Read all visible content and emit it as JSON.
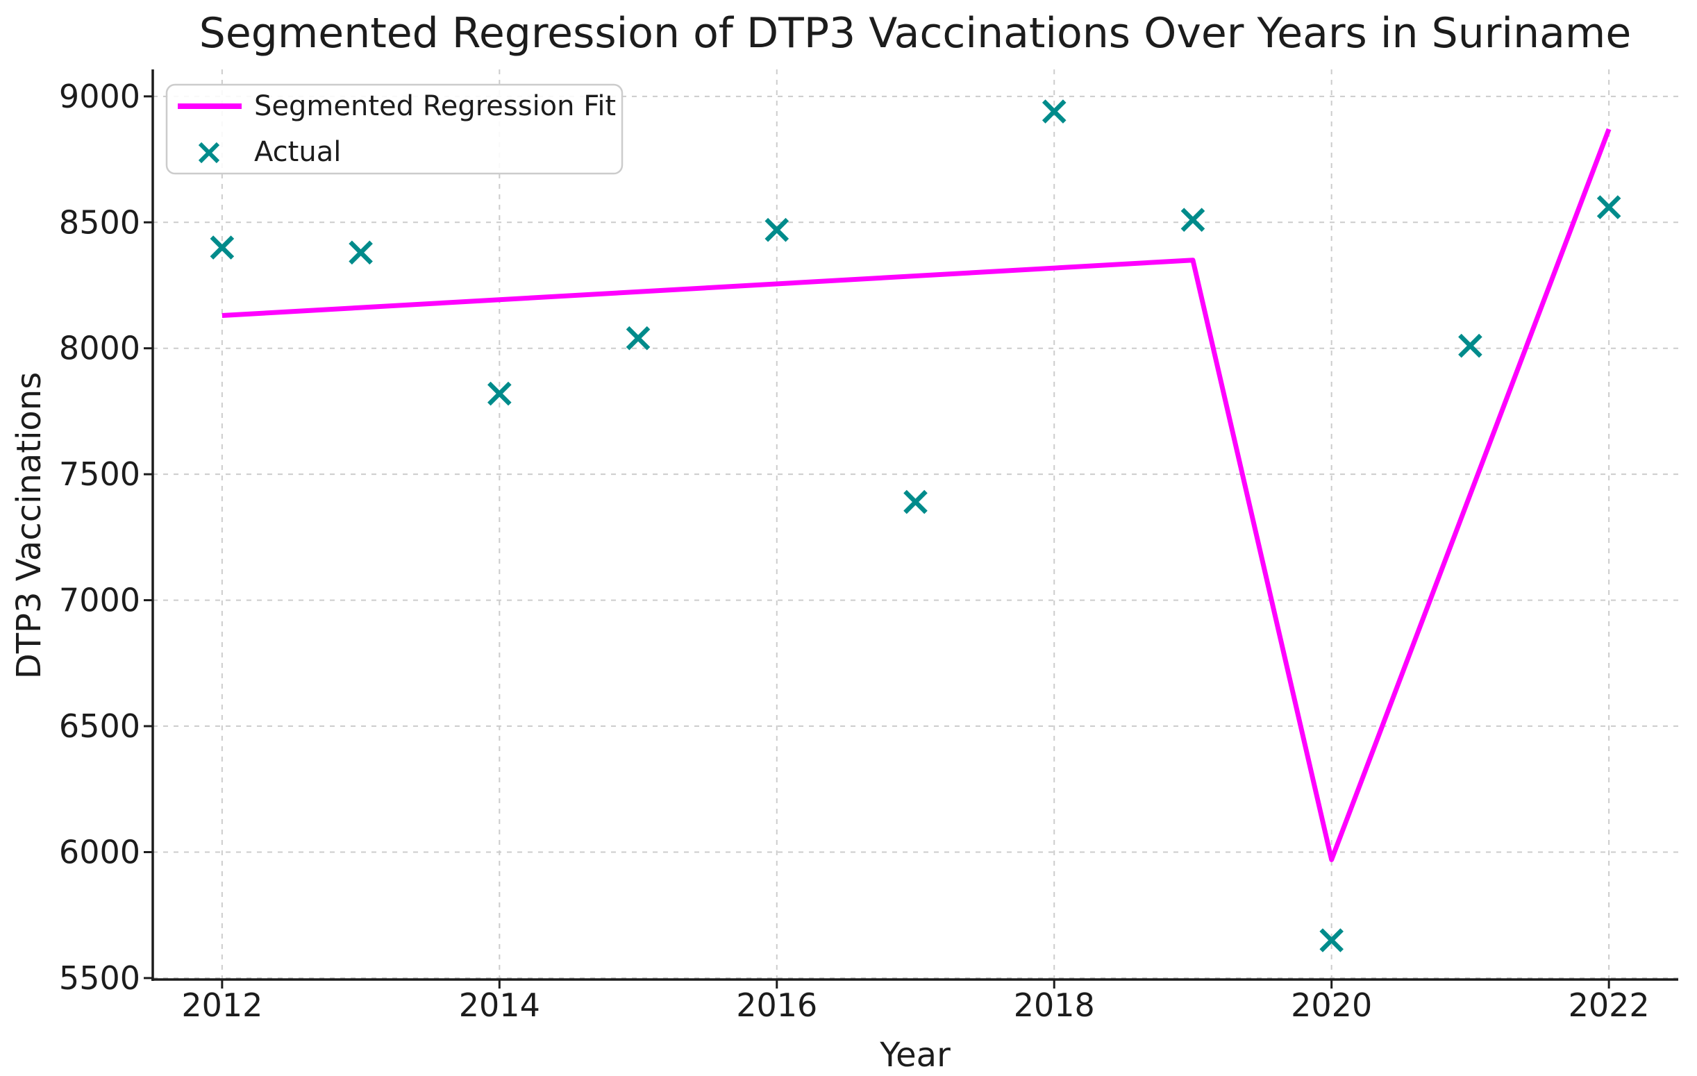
{
  "title": "Segmented Regression of DTP3 Vaccinations Over Years in Suriname",
  "axes": {
    "xlabel": "Year",
    "ylabel": "DTP3 Vaccinations",
    "x_ticks": [
      2012,
      2014,
      2016,
      2018,
      2020,
      2022
    ],
    "y_ticks": [
      5500,
      6000,
      6500,
      7000,
      7500,
      8000,
      8500,
      9000
    ]
  },
  "legend": {
    "position": "upper-left",
    "items": [
      {
        "label": "Segmented Regression Fit",
        "marker": "line",
        "color": "#ff00ff"
      },
      {
        "label": "Actual",
        "marker": "x",
        "color": "#008b8b"
      }
    ]
  },
  "colors": {
    "fit_line": "#ff00ff",
    "actual_marker": "#008b8b",
    "grid": "#cccccc",
    "spine": "#1c1c1c",
    "text": "#1c1c1c",
    "background": "#ffffff"
  },
  "chart_data": {
    "type": "scatter",
    "title": "Segmented Regression of DTP3 Vaccinations Over Years in Suriname",
    "xlabel": "Year",
    "ylabel": "DTP3 Vaccinations",
    "x": [
      2012,
      2013,
      2014,
      2015,
      2016,
      2017,
      2018,
      2019,
      2020,
      2021,
      2022
    ],
    "series": [
      {
        "name": "Actual",
        "type": "scatter",
        "marker": "x",
        "color": "#008b8b",
        "values": [
          8400,
          8380,
          7820,
          8040,
          8470,
          7390,
          8940,
          8510,
          5650,
          8010,
          8560
        ]
      },
      {
        "name": "Segmented Regression Fit",
        "type": "line",
        "color": "#ff00ff",
        "values": [
          8130,
          8161,
          8193,
          8224,
          8256,
          8287,
          8319,
          8350,
          5970,
          7420,
          8870
        ],
        "breakpoints": [
          [
            2012,
            8130
          ],
          [
            2019,
            8350
          ],
          [
            2020,
            5970
          ],
          [
            2022,
            8870
          ]
        ]
      }
    ],
    "xlim": [
      2011.5,
      2022.5
    ],
    "ylim": [
      5486,
      9107
    ],
    "x_ticks": [
      2012,
      2014,
      2016,
      2018,
      2020,
      2022
    ],
    "y_ticks": [
      5500,
      6000,
      6500,
      7000,
      7500,
      8000,
      8500,
      9000
    ],
    "grid": true,
    "grid_style": "dashed",
    "legend_position": "upper left"
  }
}
